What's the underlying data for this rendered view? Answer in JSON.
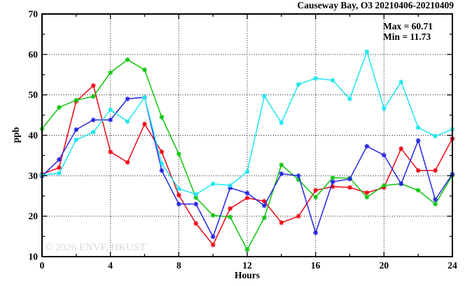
{
  "header": {
    "title": "Causeway Bay, O3 20210406-20210409"
  },
  "annotation": {
    "max_label": "Max = 60.71",
    "min_label": "Min = 11.73"
  },
  "watermark": "© 2026 ENVF, HKUST",
  "chart_data": {
    "type": "line",
    "title": "Causeway Bay, O3 20210406-20210409",
    "xlabel": "Hours",
    "ylabel": "ppb",
    "xlim": [
      0,
      24
    ],
    "ylim": [
      10,
      70
    ],
    "x_major_ticks": [
      0,
      4,
      8,
      12,
      16,
      20,
      24
    ],
    "x_minor_step": 2,
    "y_major_ticks": [
      10,
      20,
      30,
      40,
      50,
      60,
      70
    ],
    "y_minor_step": 5,
    "grid": "dotted black at major ticks, mirrored inward ticks on all four spines",
    "legend_position": "none",
    "marker": "asterisk",
    "max_value": 60.71,
    "min_value": 11.73,
    "x": [
      0,
      1,
      2,
      3,
      4,
      5,
      6,
      7,
      8,
      9,
      10,
      11,
      12,
      13,
      14,
      15,
      16,
      17,
      18,
      19,
      20,
      21,
      22,
      23,
      24
    ],
    "series": [
      {
        "name": "series-1-red",
        "color": "#f00514",
        "values": [
          30.4,
          32.0,
          48.4,
          52.3,
          35.9,
          33.3,
          42.8,
          35.9,
          25.2,
          18.2,
          12.9,
          21.9,
          24.5,
          23.7,
          18.4,
          20.0,
          26.4,
          27.3,
          27.1,
          25.8,
          27.1,
          36.7,
          31.3,
          31.3,
          39.2
        ]
      },
      {
        "name": "series-2-green",
        "color": "#0cc60c",
        "values": [
          41.6,
          46.9,
          48.7,
          49.6,
          55.5,
          58.7,
          56.2,
          44.5,
          35.4,
          24.6,
          20.2,
          19.8,
          11.73,
          19.6,
          32.7,
          29.0,
          24.7,
          29.5,
          29.4,
          24.7,
          27.6,
          28.0,
          26.4,
          23.0,
          30.1
        ]
      },
      {
        "name": "series-3-blue",
        "color": "#2425e4",
        "values": [
          29.9,
          34.0,
          41.4,
          43.8,
          43.8,
          49.0,
          49.4,
          31.3,
          23.0,
          23.0,
          14.9,
          27.0,
          25.7,
          22.6,
          30.5,
          30.0,
          15.9,
          28.5,
          29.2,
          37.3,
          35.1,
          28.0,
          38.7,
          24.1,
          30.4
        ]
      },
      {
        "name": "series-4-cyan",
        "color": "#1ce6ee",
        "values": [
          30.2,
          30.6,
          38.9,
          40.8,
          46.3,
          43.4,
          49.4,
          33.0,
          26.8,
          25.4,
          28.0,
          27.6,
          31.0,
          49.7,
          43.1,
          52.6,
          54.1,
          53.6,
          49.0,
          60.71,
          46.6,
          53.2,
          41.9,
          39.8,
          41.5
        ]
      }
    ]
  }
}
